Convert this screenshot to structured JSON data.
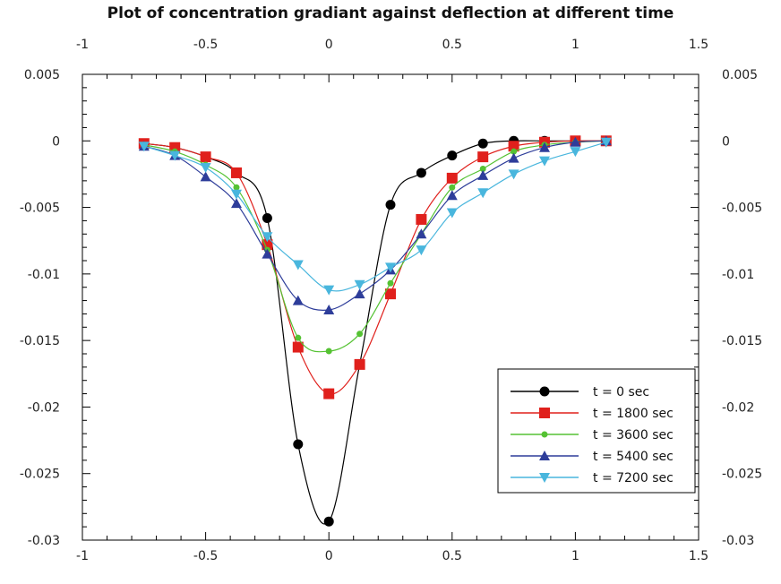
{
  "chart_data": {
    "type": "line",
    "title": "Plot of concentration gradiant against deflection at different time",
    "xlabel": "",
    "ylabel": "",
    "xlim": [
      -1,
      1.5
    ],
    "ylim": [
      -0.03,
      0.005
    ],
    "x_ticks": [
      -1,
      -0.5,
      0,
      0.5,
      1,
      1.5
    ],
    "x_tick_labels": [
      "-1",
      "-0.5",
      "0",
      "0.5",
      "1",
      "1.5"
    ],
    "y_ticks": [
      0.005,
      0,
      -0.005,
      -0.01,
      -0.015,
      -0.02,
      -0.025,
      -0.03
    ],
    "y_tick_labels": [
      "0.005",
      "0",
      "-0.005",
      "-0.01",
      "-0.015",
      "-0.02",
      "-0.025",
      "-0.03"
    ],
    "grid": false,
    "legend_position": "bottom-right",
    "series": [
      {
        "name": "t = 0 sec",
        "color": "#000000",
        "marker": "circle",
        "x": [
          -0.75,
          -0.625,
          -0.5,
          -0.375,
          -0.25,
          -0.125,
          0,
          0.125,
          0.25,
          0.375,
          0.5,
          0.625,
          0.75,
          0.875,
          1,
          1.125
        ],
        "y": [
          -0.0002,
          -0.0005,
          -0.0012,
          -0.0024,
          -0.0058,
          -0.0228,
          -0.0286,
          -0.0168,
          -0.0048,
          -0.0024,
          -0.0011,
          -0.0002,
          0.0,
          0.0,
          0.0,
          0.0
        ]
      },
      {
        "name": "t = 1800 sec",
        "color": "#e0201c",
        "marker": "square",
        "x": [
          -0.75,
          -0.625,
          -0.5,
          -0.375,
          -0.25,
          -0.125,
          0,
          0.125,
          0.25,
          0.375,
          0.5,
          0.625,
          0.75,
          0.875,
          1,
          1.125
        ],
        "y": [
          -0.0002,
          -0.0005,
          -0.0012,
          -0.0024,
          -0.0078,
          -0.0155,
          -0.019,
          -0.0168,
          -0.0115,
          -0.0059,
          -0.0028,
          -0.0012,
          -0.0004,
          -0.0001,
          0.0,
          0.0
        ]
      },
      {
        "name": "t = 3600 sec",
        "color": "#55c233",
        "marker": "dot",
        "x": [
          -0.75,
          -0.625,
          -0.5,
          -0.375,
          -0.25,
          -0.125,
          0,
          0.125,
          0.25,
          0.375,
          0.5,
          0.625,
          0.75,
          0.875,
          1,
          1.125
        ],
        "y": [
          -0.0003,
          -0.0008,
          -0.0018,
          -0.0035,
          -0.0082,
          -0.0148,
          -0.0158,
          -0.0145,
          -0.0107,
          -0.007,
          -0.0035,
          -0.0021,
          -0.0008,
          -0.0003,
          -0.0001,
          0.0
        ]
      },
      {
        "name": "t = 5400 sec",
        "color": "#2e3d9a",
        "marker": "triangle",
        "x": [
          -0.75,
          -0.625,
          -0.5,
          -0.375,
          -0.25,
          -0.125,
          0,
          0.125,
          0.25,
          0.375,
          0.5,
          0.625,
          0.75,
          0.875,
          1,
          1.125
        ],
        "y": [
          -0.0004,
          -0.0011,
          -0.0027,
          -0.0047,
          -0.0085,
          -0.012,
          -0.0127,
          -0.0115,
          -0.0097,
          -0.007,
          -0.0041,
          -0.0026,
          -0.0013,
          -0.0005,
          -0.0001,
          0.0
        ]
      },
      {
        "name": "t = 7200 sec",
        "color": "#49b6dd",
        "marker": "down-triangle",
        "x": [
          -0.75,
          -0.625,
          -0.5,
          -0.375,
          -0.25,
          -0.125,
          0,
          0.125,
          0.25,
          0.375,
          0.5,
          0.625,
          0.75,
          0.875,
          1,
          1.125
        ],
        "y": [
          -0.0004,
          -0.0011,
          -0.002,
          -0.004,
          -0.0072,
          -0.0093,
          -0.0112,
          -0.0108,
          -0.0095,
          -0.0082,
          -0.0054,
          -0.0039,
          -0.0025,
          -0.0015,
          -0.0008,
          -0.0001
        ]
      }
    ]
  }
}
